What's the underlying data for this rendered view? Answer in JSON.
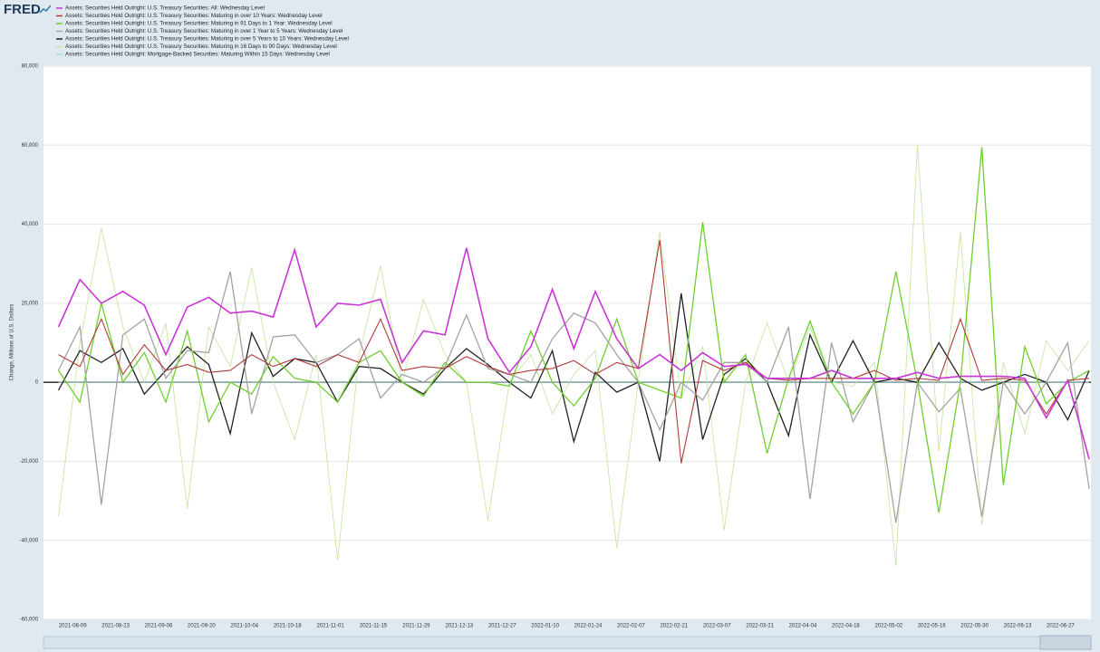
{
  "logo": "FRED",
  "chart_data": {
    "type": "line",
    "y_label": "Change, Millions of U.S. Dollars",
    "categories": [
      null,
      "2021-08-09",
      null,
      "2021-08-23",
      null,
      "2021-09-06",
      null,
      "2021-09-20",
      null,
      "2021-10-04",
      null,
      "2021-10-18",
      null,
      "2021-11-01",
      null,
      "2021-11-15",
      null,
      "2021-11-29",
      null,
      "2021-12-13",
      null,
      "2021-12-27",
      null,
      "2022-01-10",
      null,
      "2022-01-24",
      null,
      "2022-02-07",
      null,
      "2022-02-21",
      null,
      "2022-03-07",
      null,
      "2022-03-21",
      null,
      "2022-04-04",
      null,
      "2022-04-18",
      null,
      "2022-05-02",
      null,
      "2022-05-16",
      null,
      "2022-05-30",
      null,
      "2022-06-13",
      null,
      "2022-06-27",
      null
    ],
    "ylim": [
      -60000,
      80000
    ],
    "yticks": [
      {
        "value": -60000,
        "label": "-60,000"
      },
      {
        "value": -40000,
        "label": "-40,000"
      },
      {
        "value": -20000,
        "label": "-20,000"
      },
      0,
      {
        "value": 20000,
        "label": "20,000"
      },
      {
        "value": 40000,
        "label": "40,000"
      },
      {
        "value": 60000,
        "label": "60,000"
      },
      {
        "value": 80000,
        "label": "80,000"
      }
    ],
    "grid": true,
    "series": [
      {
        "name": "Assets: Securities Held Outright: U.S. Treasury Securities: All: Wednesday Level",
        "color": "#c935d6",
        "width": 1.6,
        "values": [
          14000,
          26000,
          20000,
          23000,
          19500,
          7000,
          19000,
          21500,
          17500,
          18000,
          16500,
          33500,
          14000,
          20000,
          19500,
          21000,
          5000,
          13000,
          12000,
          34000,
          11000,
          2500,
          9000,
          23500,
          8500,
          23000,
          11000,
          3500,
          7000,
          3000,
          7500,
          4000,
          4500,
          1000,
          1000,
          1000,
          3000,
          1000,
          1000,
          1000,
          2500,
          1000,
          1500,
          1500,
          1500,
          1000,
          -9000,
          500,
          -19500
        ]
      },
      {
        "name": "Assets: Securities Held Outright: U.S. Treasury Securities: Maturing in over 10 Years: Wednesday Level",
        "color": "#b03a3a",
        "width": 1.1,
        "values": [
          7000,
          4000,
          16000,
          2000,
          9500,
          3000,
          4500,
          2500,
          3000,
          7000,
          4000,
          6000,
          4000,
          7000,
          5000,
          16000,
          3000,
          4000,
          3500,
          6500,
          4000,
          2000,
          3000,
          3500,
          5500,
          2000,
          5000,
          3500,
          36000,
          -20500,
          5500,
          3000,
          5000,
          1000,
          500,
          1000,
          1000,
          1000,
          3000,
          500,
          1000,
          500,
          16000,
          500,
          1000,
          500,
          -8000,
          500,
          1000
        ]
      },
      {
        "name": "Assets: Securities Held Outright: U.S. Treasury Securities: Maturing in 91 Days to 1 Year: Wednesday Level",
        "color": "#6fcf2e",
        "width": 1.3,
        "values": [
          3000,
          -5000,
          20000,
          0,
          7500,
          -5000,
          13000,
          -10000,
          0,
          -3000,
          6500,
          1000,
          0,
          -5000,
          5000,
          8000,
          0,
          -3500,
          5000,
          0,
          0,
          -1000,
          13000,
          0,
          -6000,
          1000,
          16000,
          0,
          -2000,
          -4000,
          40500,
          0,
          7000,
          -18000,
          1000,
          15500,
          0,
          -8000,
          0,
          28000,
          0,
          -33000,
          0,
          59500,
          -26000,
          9000,
          -5500,
          0,
          3000
        ]
      },
      {
        "name": "Assets: Securities Held Outright: U.S. Treasury Securities: Maturing in over 1 Year to 5 Years: Wednesday Level",
        "color": "#a3a3a3",
        "width": 1.3,
        "values": [
          3000,
          14000,
          -31000,
          12000,
          16000,
          1000,
          8000,
          7500,
          28000,
          -8000,
          11500,
          12000,
          5000,
          7000,
          11000,
          -4000,
          2000,
          0,
          4000,
          17000,
          3500,
          2000,
          0,
          11000,
          17500,
          15000,
          7000,
          0,
          -12000,
          0,
          -4500,
          5000,
          5000,
          0,
          14000,
          -29500,
          10000,
          -10000,
          0,
          -35500,
          0,
          -7500,
          -1500,
          -34000,
          0,
          -8000,
          0,
          10000,
          -27000
        ]
      },
      {
        "name": "Assets: Securities Held Outright: U.S. Treasury Securities: Maturing in over 5 Years to 10 Years: Wednesday Level",
        "color": "#222222",
        "width": 1.3,
        "values": [
          -2000,
          8000,
          5000,
          8500,
          -3000,
          3000,
          9000,
          4500,
          -13000,
          12500,
          1500,
          6000,
          5000,
          -5000,
          4000,
          3500,
          0,
          -3000,
          3500,
          8500,
          4500,
          0,
          -4000,
          8000,
          -15000,
          2500,
          -2500,
          0,
          -20000,
          22500,
          -14500,
          2000,
          6000,
          0,
          -13500,
          12000,
          0,
          10500,
          0,
          1000,
          0,
          10000,
          1000,
          -2000,
          0,
          2000,
          0,
          -9500,
          3000
        ]
      },
      {
        "name": "Assets: Securities Held Outright: U.S. Treasury Securities: Maturing in 16 Days to 90 Days: Wednesday Level",
        "color": "#c2e59a",
        "width": 0.8,
        "values": [
          -34000,
          10000,
          39000,
          14000,
          0,
          15000,
          -32000,
          14000,
          4000,
          29000,
          0,
          -14500,
          7000,
          -45000,
          7000,
          29500,
          0,
          21000,
          7000,
          0,
          -35000,
          0,
          7000,
          -8000,
          2000,
          8000,
          -42000,
          0,
          38000,
          -4000,
          9000,
          -37500,
          0,
          15000,
          0,
          14000,
          0,
          -1000,
          5000,
          -46500,
          60000,
          -17500,
          38000,
          -36000,
          5000,
          -13000,
          10500,
          3000,
          10500
        ]
      },
      {
        "name": "Assets: Securities Held Outright: Mortgage-Backed Securities: Maturing Within 15 Days: Wednesday Level",
        "color": "#9fe0e6",
        "width": 0.8,
        "values": [
          0,
          0,
          0,
          0,
          0,
          0,
          0,
          0,
          0,
          0,
          0,
          0,
          0,
          0,
          0,
          0,
          0,
          0,
          0,
          0,
          0,
          0,
          0,
          0,
          0,
          0,
          0,
          0,
          0,
          0,
          0,
          0,
          0,
          0,
          0,
          0,
          0,
          0,
          0,
          0,
          0,
          0,
          0,
          0,
          0,
          0,
          0,
          0,
          0
        ]
      }
    ]
  }
}
